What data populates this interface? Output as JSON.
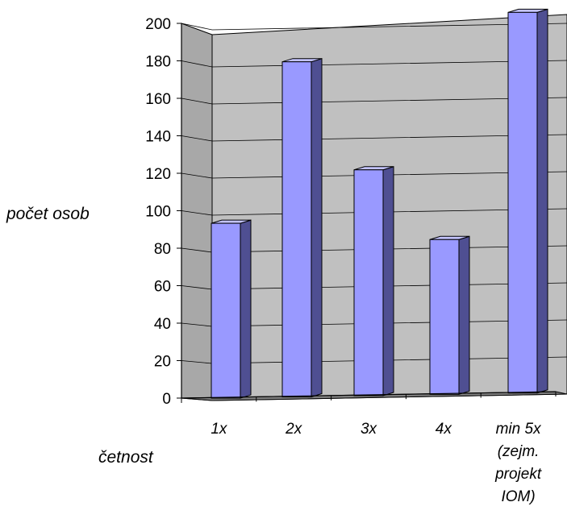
{
  "chart_data": {
    "type": "bar",
    "categories": [
      "1x",
      "2x",
      "3x",
      "4x",
      "min 5x (zejm. projekt IOM)"
    ],
    "category_lines": [
      [
        "1x"
      ],
      [
        "2x"
      ],
      [
        "3x"
      ],
      [
        "4x"
      ],
      [
        "min 5x",
        "(zejm.",
        "projekt",
        "IOM)"
      ]
    ],
    "values": [
      96,
      184,
      124,
      85,
      209
    ],
    "title": "",
    "xlabel": "četnost",
    "ylabel": "počet osob",
    "ylim": [
      0,
      200
    ],
    "yticks": [
      0,
      20,
      40,
      60,
      80,
      100,
      120,
      140,
      160,
      180,
      200
    ],
    "grid": true,
    "three_d": true,
    "colors": {
      "bar_front": "#9999ff",
      "bar_side": "#4f4f92",
      "bar_top": "#c3c3ff",
      "back_wall": "#c0c0c0",
      "side_wall": "#a8a8a8",
      "floor": "#7f7f7f",
      "gridline": "#000000"
    }
  }
}
